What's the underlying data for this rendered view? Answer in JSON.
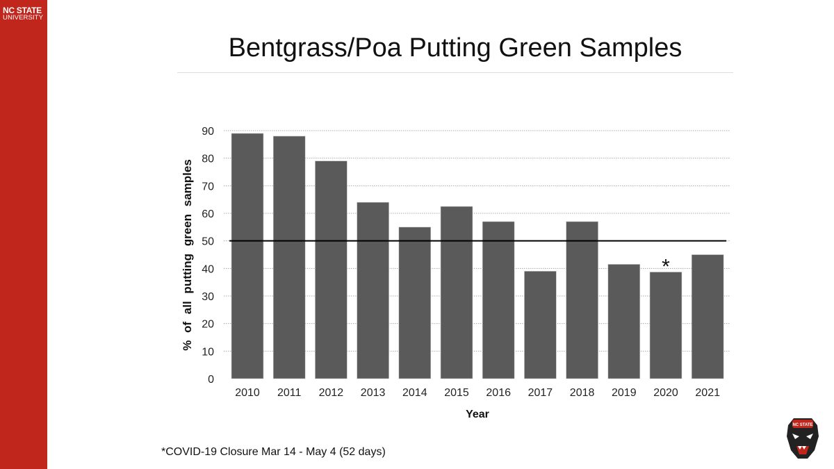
{
  "branding": {
    "line1": "NC STATE",
    "line2": "UNIVERSITY",
    "color": "#c1261c"
  },
  "title": "Bentgrass/Poa Putting Green Samples",
  "footnote": "*COVID-19 Closure Mar 14 - May 4 (52 days)",
  "chart_data": {
    "type": "bar",
    "title": "Bentgrass/Poa Putting Green Samples",
    "xlabel": "Year",
    "ylabel": "% of all putting green samples",
    "categories": [
      "2010",
      "2011",
      "2012",
      "2013",
      "2014",
      "2015",
      "2016",
      "2017",
      "2018",
      "2019",
      "2020",
      "2021"
    ],
    "values": [
      89,
      88,
      79,
      64,
      55,
      62.5,
      57,
      39,
      57,
      41.5,
      38.7,
      45
    ],
    "ylim": [
      0,
      90
    ],
    "yticks": [
      0,
      10,
      20,
      30,
      40,
      50,
      60,
      70,
      80,
      90
    ],
    "grid": true,
    "reference_line": 50,
    "annotations": [
      {
        "category": "2020",
        "text": "*"
      }
    ],
    "bar_color": "#5a5a5a"
  }
}
